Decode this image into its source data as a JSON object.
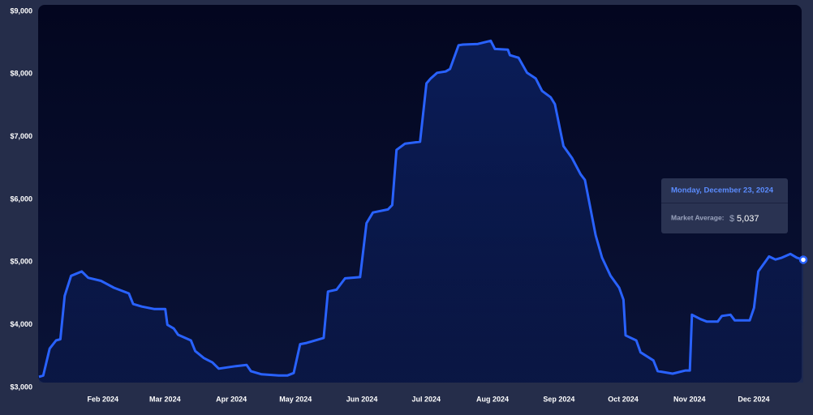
{
  "chart_data": {
    "type": "line",
    "x": [
      1,
      3,
      6,
      9,
      11,
      13,
      16,
      21,
      24,
      30,
      36,
      43,
      45,
      49,
      55,
      60,
      61,
      64,
      66,
      72,
      74,
      78,
      82,
      85,
      93,
      98,
      100,
      105,
      113,
      117,
      120,
      123,
      126,
      134,
      136,
      140,
      144,
      151,
      154,
      157,
      164,
      166,
      168,
      172,
      179,
      182,
      184,
      187,
      191,
      193,
      197,
      199,
      206,
      212,
      214,
      220,
      221,
      225,
      229,
      233,
      236,
      240,
      242,
      246,
      250,
      254,
      256,
      261,
      264,
      268,
      272,
      274,
      275,
      280,
      282,
      288,
      290,
      297,
      303,
      305,
      306,
      310,
      313,
      318,
      320,
      324,
      326,
      333,
      335,
      337,
      341,
      342,
      345,
      348,
      352,
      355,
      358
    ],
    "series": [
      {
        "name": "Market Average:",
        "color": "#2962ff",
        "values": [
          3170,
          3190,
          3620,
          3750,
          3770,
          4460,
          4780,
          4850,
          4750,
          4700,
          4590,
          4500,
          4330,
          4290,
          4250,
          4250,
          4000,
          3940,
          3840,
          3750,
          3580,
          3470,
          3400,
          3300,
          3340,
          3360,
          3260,
          3210,
          3190,
          3190,
          3230,
          3690,
          3710,
          3790,
          4530,
          4560,
          4740,
          4760,
          5620,
          5790,
          5840,
          5910,
          6790,
          6890,
          6920,
          7850,
          7930,
          8020,
          8040,
          8080,
          8460,
          8470,
          8480,
          8530,
          8400,
          8390,
          8300,
          8260,
          8020,
          7930,
          7730,
          7630,
          7520,
          6850,
          6660,
          6400,
          6310,
          5430,
          5070,
          4780,
          4590,
          4400,
          3830,
          3750,
          3560,
          3430,
          3260,
          3220,
          3270,
          3270,
          4160,
          4090,
          4050,
          4050,
          4140,
          4160,
          4070,
          4070,
          4270,
          4850,
          5040,
          5090,
          5040,
          5070,
          5130,
          5070,
          5037
        ]
      }
    ],
    "xlim": [
      1,
      358
    ],
    "xticks": [
      {
        "value": 32,
        "label": "Feb 2024"
      },
      {
        "value": 61,
        "label": "Mar 2024"
      },
      {
        "value": 92,
        "label": "Apr 2024"
      },
      {
        "value": 122,
        "label": "May 2024"
      },
      {
        "value": 153,
        "label": "Jun 2024"
      },
      {
        "value": 183,
        "label": "Jul 2024"
      },
      {
        "value": 214,
        "label": "Aug 2024"
      },
      {
        "value": 245,
        "label": "Sep 2024"
      },
      {
        "value": 275,
        "label": "Oct 2024"
      },
      {
        "value": 306,
        "label": "Nov 2024"
      },
      {
        "value": 336,
        "label": "Dec 2024"
      }
    ],
    "ylim": [
      3000,
      9000
    ],
    "yticks": [
      {
        "value": 3000,
        "label": "$3,000"
      },
      {
        "value": 4000,
        "label": "$4,000"
      },
      {
        "value": 5000,
        "label": "$5,000"
      },
      {
        "value": 6000,
        "label": "$6,000"
      },
      {
        "value": 7000,
        "label": "$7,000"
      },
      {
        "value": 8000,
        "label": "$8,000"
      },
      {
        "value": 9000,
        "label": "$9,000"
      }
    ],
    "tooltip": {
      "date": "Monday, December 23, 2024",
      "currency": "$",
      "value_label": "5,037"
    }
  }
}
